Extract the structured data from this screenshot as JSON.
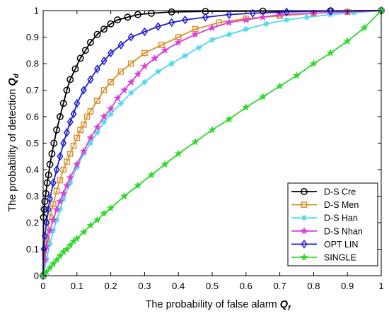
{
  "chart_data": {
    "type": "line",
    "xlabel": "The probability of false alarm",
    "xlabel_symbol": "Q",
    "xlabel_subscript": "f",
    "ylabel": "The probability of detection",
    "ylabel_symbol": "Q",
    "ylabel_subscript": "d",
    "xlim": [
      0,
      1
    ],
    "ylim": [
      0,
      1
    ],
    "xticks": [
      "0",
      "0.1",
      "0.2",
      "0.3",
      "0.4",
      "0.5",
      "0.6",
      "0.7",
      "0.8",
      "0.9",
      "1"
    ],
    "yticks": [
      "0",
      "0.1",
      "0.2",
      "0.3",
      "0.4",
      "0.5",
      "0.6",
      "0.7",
      "0.8",
      "0.9",
      "1"
    ],
    "xtick_values": [
      0,
      0.1,
      0.2,
      0.3,
      0.4,
      0.5,
      0.6,
      0.7,
      0.8,
      0.9,
      1
    ],
    "ytick_values": [
      0,
      0.1,
      0.2,
      0.3,
      0.4,
      0.5,
      0.6,
      0.7,
      0.8,
      0.9,
      1
    ],
    "grid": false,
    "legend_position": "bottom-right",
    "series": [
      {
        "name": "D-S Cre",
        "color": "#000000",
        "marker": "circle",
        "x": [
          0,
          0.001,
          0.003,
          0.005,
          0.008,
          0.012,
          0.016,
          0.02,
          0.026,
          0.032,
          0.04,
          0.05,
          0.06,
          0.07,
          0.08,
          0.095,
          0.11,
          0.125,
          0.14,
          0.16,
          0.18,
          0.2,
          0.22,
          0.25,
          0.28,
          0.32,
          0.38,
          0.48,
          0.65,
          0.85,
          1
        ],
        "y": [
          0,
          0.22,
          0.25,
          0.28,
          0.31,
          0.35,
          0.38,
          0.42,
          0.46,
          0.5,
          0.55,
          0.6,
          0.65,
          0.7,
          0.74,
          0.78,
          0.82,
          0.85,
          0.88,
          0.91,
          0.93,
          0.95,
          0.965,
          0.975,
          0.985,
          0.99,
          0.995,
          0.997,
          0.998,
          0.999,
          1
        ]
      },
      {
        "name": "D-S Men",
        "color": "#D9922F",
        "marker": "square",
        "x": [
          0,
          0.005,
          0.01,
          0.02,
          0.03,
          0.04,
          0.05,
          0.06,
          0.07,
          0.08,
          0.09,
          0.1,
          0.11,
          0.12,
          0.13,
          0.14,
          0.16,
          0.18,
          0.2,
          0.23,
          0.26,
          0.3,
          0.35,
          0.4,
          0.45,
          0.52,
          0.6,
          0.7,
          0.8,
          0.9,
          1
        ],
        "y": [
          0,
          0.08,
          0.14,
          0.22,
          0.27,
          0.32,
          0.36,
          0.4,
          0.43,
          0.46,
          0.49,
          0.52,
          0.55,
          0.57,
          0.6,
          0.62,
          0.66,
          0.7,
          0.73,
          0.77,
          0.8,
          0.84,
          0.87,
          0.9,
          0.93,
          0.955,
          0.97,
          0.98,
          0.99,
          0.995,
          1
        ]
      },
      {
        "name": "D-S Han",
        "color": "#50D8EA",
        "marker": "asterisk",
        "x": [
          0,
          0.01,
          0.02,
          0.03,
          0.04,
          0.05,
          0.06,
          0.08,
          0.1,
          0.12,
          0.14,
          0.16,
          0.18,
          0.2,
          0.23,
          0.26,
          0.3,
          0.34,
          0.38,
          0.42,
          0.46,
          0.5,
          0.55,
          0.6,
          0.66,
          0.72,
          0.78,
          0.85,
          0.92,
          1
        ],
        "y": [
          0,
          0.06,
          0.12,
          0.17,
          0.21,
          0.25,
          0.29,
          0.35,
          0.41,
          0.46,
          0.5,
          0.54,
          0.58,
          0.61,
          0.65,
          0.69,
          0.73,
          0.77,
          0.8,
          0.83,
          0.86,
          0.89,
          0.91,
          0.93,
          0.95,
          0.965,
          0.975,
          0.985,
          0.992,
          1
        ]
      },
      {
        "name": "D-S Nhan",
        "color": "#D93FD9",
        "marker": "star",
        "x": [
          0,
          0.005,
          0.01,
          0.02,
          0.03,
          0.04,
          0.05,
          0.06,
          0.07,
          0.08,
          0.1,
          0.12,
          0.14,
          0.16,
          0.18,
          0.2,
          0.22,
          0.24,
          0.26,
          0.28,
          0.3,
          0.33,
          0.36,
          0.4,
          0.45,
          0.5,
          0.55,
          0.6,
          0.65,
          0.7,
          0.8,
          0.9,
          1
        ],
        "y": [
          0,
          0.06,
          0.11,
          0.17,
          0.21,
          0.25,
          0.28,
          0.31,
          0.34,
          0.37,
          0.42,
          0.47,
          0.52,
          0.56,
          0.6,
          0.63,
          0.67,
          0.7,
          0.73,
          0.76,
          0.79,
          0.82,
          0.85,
          0.88,
          0.91,
          0.935,
          0.955,
          0.965,
          0.975,
          0.985,
          0.99,
          0.995,
          1
        ]
      },
      {
        "name": "OPT LIN",
        "color": "#1F1FCF",
        "marker": "diamond",
        "x": [
          0,
          0.002,
          0.005,
          0.01,
          0.015,
          0.02,
          0.03,
          0.04,
          0.05,
          0.06,
          0.07,
          0.08,
          0.09,
          0.1,
          0.12,
          0.14,
          0.16,
          0.18,
          0.2,
          0.23,
          0.26,
          0.3,
          0.34,
          0.38,
          0.42,
          0.48,
          0.55,
          0.62,
          0.72,
          0.85,
          1
        ],
        "y": [
          0,
          0.1,
          0.15,
          0.2,
          0.25,
          0.29,
          0.35,
          0.4,
          0.45,
          0.5,
          0.54,
          0.58,
          0.61,
          0.65,
          0.7,
          0.74,
          0.78,
          0.81,
          0.84,
          0.87,
          0.9,
          0.92,
          0.94,
          0.955,
          0.965,
          0.975,
          0.985,
          0.99,
          0.995,
          0.998,
          1
        ]
      },
      {
        "name": "SINGLE",
        "color": "#2FD82F",
        "marker": "star",
        "x": [
          0,
          0.01,
          0.02,
          0.03,
          0.04,
          0.05,
          0.06,
          0.07,
          0.08,
          0.09,
          0.1,
          0.12,
          0.14,
          0.16,
          0.18,
          0.2,
          0.24,
          0.28,
          0.32,
          0.36,
          0.4,
          0.45,
          0.5,
          0.55,
          0.6,
          0.65,
          0.7,
          0.75,
          0.8,
          0.85,
          0.9,
          0.95,
          1
        ],
        "y": [
          0,
          0.015,
          0.03,
          0.045,
          0.06,
          0.075,
          0.09,
          0.1,
          0.115,
          0.13,
          0.14,
          0.165,
          0.19,
          0.21,
          0.235,
          0.255,
          0.3,
          0.34,
          0.38,
          0.42,
          0.46,
          0.505,
          0.55,
          0.59,
          0.635,
          0.675,
          0.715,
          0.755,
          0.8,
          0.84,
          0.885,
          0.935,
          1
        ]
      }
    ]
  }
}
